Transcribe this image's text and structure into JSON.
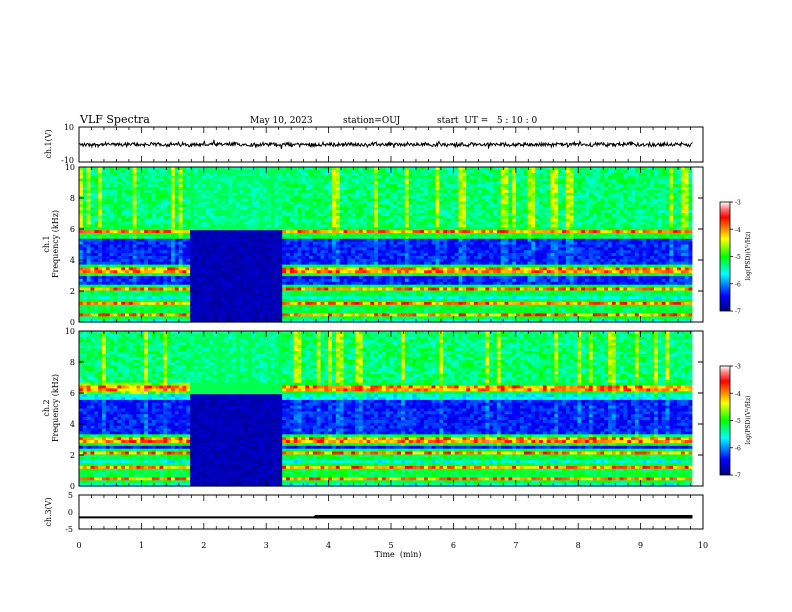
{
  "header": {
    "title": "VLF Spectra",
    "date": "May 10, 2023",
    "station": "station=OUJ",
    "start": "start  UT =   5 : 10 : 0"
  },
  "chart_data": [
    {
      "type": "line",
      "name": "ch1-waveform",
      "ylabel": "ch.1(V)",
      "ylim": [
        -10,
        10
      ],
      "y_ticks": [
        "10",
        "-10"
      ],
      "x": [
        0,
        9.83
      ],
      "amplitude_approx": 1
    },
    {
      "type": "heatmap",
      "name": "ch1-spectrogram",
      "ylabel": "ch.1\nFrequency  (kHz)",
      "ylim": [
        0,
        10
      ],
      "y_ticks": [
        "0",
        "2",
        "4",
        "6",
        "8",
        "10"
      ],
      "x_range": [
        0,
        9.83
      ],
      "colorbar": {
        "label": "log(PSD)(V²/Hz)",
        "ticks": [
          "-3",
          "-4",
          "-5",
          "-6",
          "-7"
        ],
        "range": [
          -7,
          -3
        ]
      },
      "quiet_interval_min": [
        1.77,
        3.25
      ],
      "features_khz": [
        0.5,
        1.2,
        2.1,
        3.3,
        5.8
      ]
    },
    {
      "type": "heatmap",
      "name": "ch2-spectrogram",
      "ylabel": "ch.2\nFrequency  (kHz)",
      "ylim": [
        0,
        10
      ],
      "y_ticks": [
        "0",
        "2",
        "4",
        "6",
        "8",
        "10"
      ],
      "x_range": [
        0,
        9.83
      ],
      "colorbar": {
        "label": "log(PSD)(V²/Hz)",
        "ticks": [
          "-3",
          "-4",
          "-5",
          "-6",
          "-7"
        ],
        "range": [
          -7,
          -3
        ]
      },
      "quiet_interval_min": [
        1.77,
        3.25
      ],
      "features_khz": [
        0.5,
        1.2,
        2.1,
        3.0,
        6.3
      ]
    },
    {
      "type": "line",
      "name": "ch3-level",
      "ylabel": "ch.3(V)",
      "ylim": [
        -5,
        5
      ],
      "y_ticks": [
        "5",
        "0",
        "-5"
      ],
      "x": [
        0,
        3.78,
        3.78,
        9.83
      ],
      "y": [
        -1.6,
        -1.6,
        -1.4,
        -1.4
      ]
    }
  ],
  "x_axis": {
    "label": "Time  (min)",
    "ticks": [
      "0",
      "1",
      "2",
      "3",
      "4",
      "5",
      "6",
      "7",
      "8",
      "9",
      "10"
    ],
    "range": [
      0,
      10
    ]
  },
  "colors": {
    "frame": "#000000",
    "background": "#ffffff"
  }
}
